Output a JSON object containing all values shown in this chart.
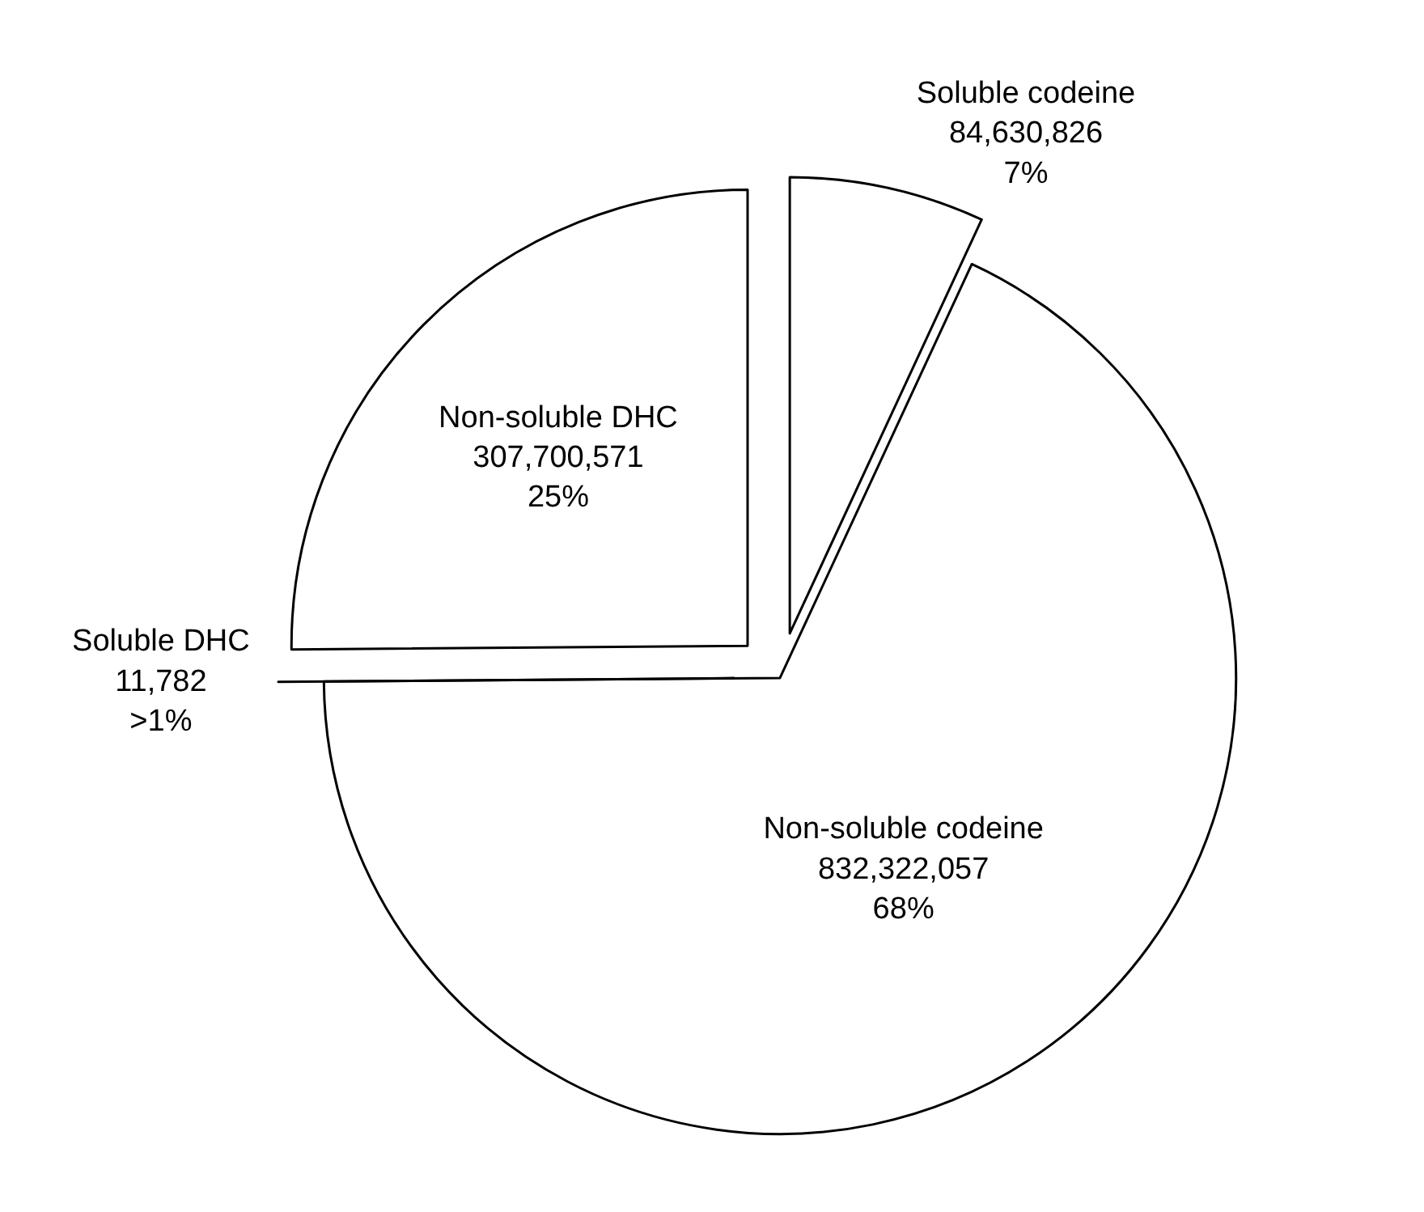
{
  "chart_data": {
    "type": "pie",
    "categories": [
      "Soluble codeine",
      "Non-soluble codeine",
      "Soluble DHC",
      "Non-soluble DHC"
    ],
    "values": [
      84630826,
      832322057,
      11782,
      307700571
    ],
    "value_labels": [
      "84,630,826\n7%",
      "832,322,057\n68%",
      "11,782\n>1%",
      "307,700,571\n25%"
    ],
    "colors": [
      "#ffffff",
      "#ffffff",
      "#ffffff",
      "#ffffff"
    ]
  }
}
